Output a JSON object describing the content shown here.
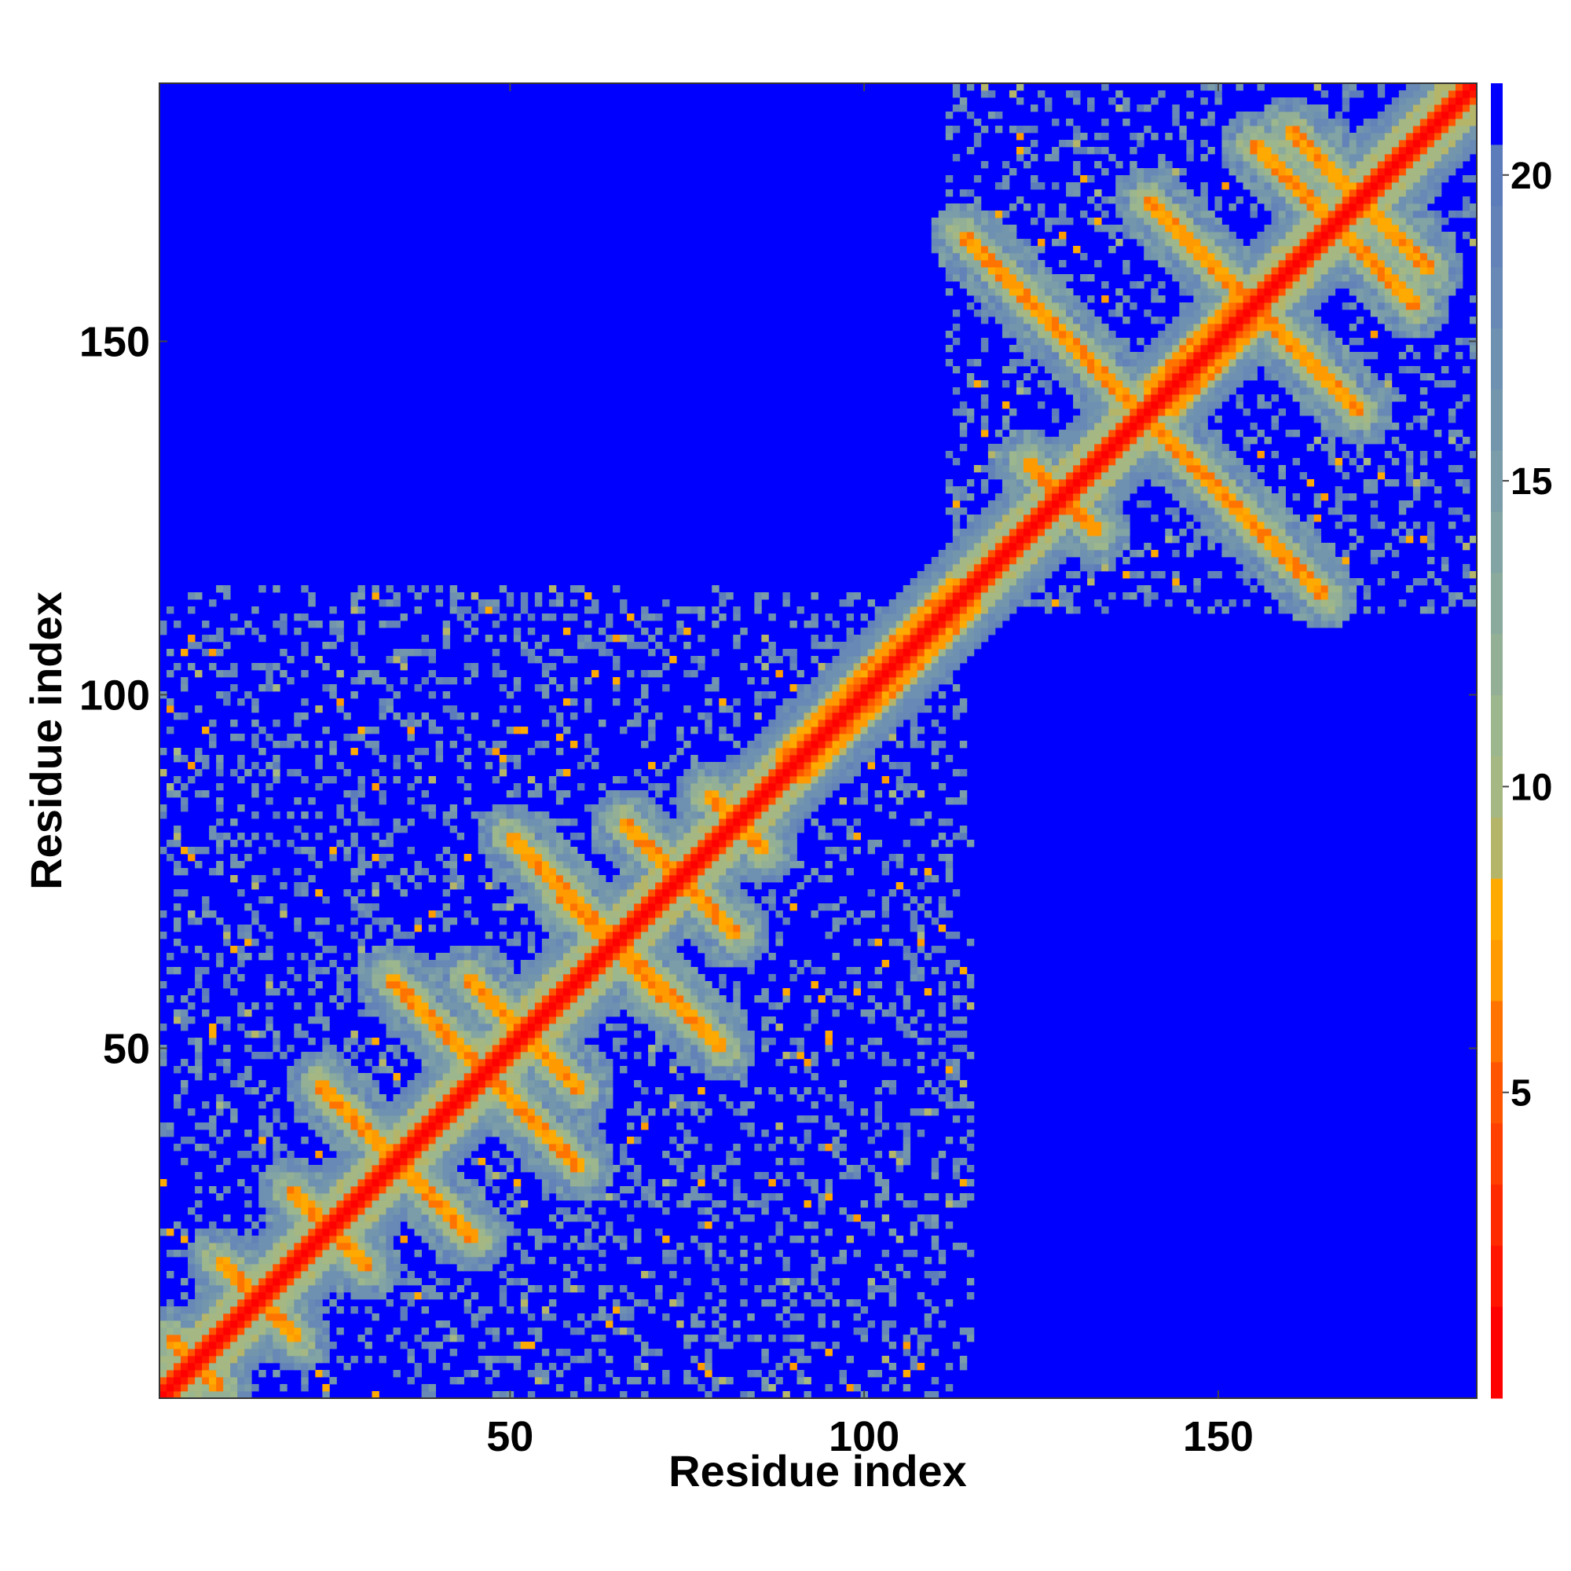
{
  "chart_data": {
    "type": "heatmap",
    "title": "",
    "xlabel": "Residue index",
    "ylabel": "Residue index",
    "n_residues": 186,
    "xlim": [
      1,
      186
    ],
    "ylim": [
      1,
      186
    ],
    "x_ticks": [
      50,
      100,
      150
    ],
    "y_ticks": [
      50,
      100,
      150
    ],
    "colorbar": {
      "ticks": [
        5,
        10,
        15,
        20
      ],
      "range": [
        0,
        21.5
      ],
      "levels": [
        {
          "max": 1.5,
          "color": "#ff0000"
        },
        {
          "max": 2.5,
          "color": "#ff1500"
        },
        {
          "max": 3.5,
          "color": "#ff2b00"
        },
        {
          "max": 4.5,
          "color": "#ff4000"
        },
        {
          "max": 5.5,
          "color": "#ff5500"
        },
        {
          "max": 6.5,
          "color": "#ff7400"
        },
        {
          "max": 7.5,
          "color": "#ff9a00"
        },
        {
          "max": 8.5,
          "color": "#ffaa00"
        },
        {
          "max": 9.5,
          "color": "#b5b56a"
        },
        {
          "max": 10.5,
          "color": "#a5b783"
        },
        {
          "max": 11.5,
          "color": "#9cb68d"
        },
        {
          "max": 12.5,
          "color": "#93b096"
        },
        {
          "max": 13.5,
          "color": "#8aaa9d"
        },
        {
          "max": 14.5,
          "color": "#82a4a4"
        },
        {
          "max": 15.5,
          "color": "#7a9da9"
        },
        {
          "max": 16.5,
          "color": "#7396ad"
        },
        {
          "max": 17.5,
          "color": "#6e90b1"
        },
        {
          "max": 18.5,
          "color": "#6888b5"
        },
        {
          "max": 19.5,
          "color": "#6282b8"
        },
        {
          "max": 20.5,
          "color": "#5c7cba"
        },
        {
          "max": 999,
          "color": "#0000ff"
        }
      ]
    },
    "structure": {
      "diagonal_width": 1.2,
      "sheets": [
        {
          "a": [
            2,
            9
          ],
          "b": [
            9,
            2
          ],
          "kind": "anti"
        },
        {
          "a": [
            9,
            20
          ],
          "b": [
            20,
            9
          ],
          "kind": "anti"
        },
        {
          "a": [
            19,
            30
          ],
          "b": [
            30,
            19
          ],
          "kind": "anti"
        },
        {
          "a": [
            23,
            45
          ],
          "b": [
            45,
            23
          ],
          "kind": "anti"
        },
        {
          "a": [
            33,
            60
          ],
          "b": [
            60,
            33
          ],
          "kind": "anti"
        },
        {
          "a": [
            50,
            80
          ],
          "b": [
            80,
            50
          ],
          "kind": "anti"
        },
        {
          "a": [
            44,
            60
          ],
          "b": [
            60,
            44
          ],
          "kind": "anti"
        },
        {
          "a": [
            57,
            72
          ],
          "b": [
            72,
            57
          ],
          "kind": "anti"
        },
        {
          "a": [
            66,
            82
          ],
          "b": [
            82,
            66
          ],
          "kind": "anti"
        },
        {
          "a": [
            78,
            86
          ],
          "b": [
            86,
            78
          ],
          "kind": "anti"
        },
        {
          "a": [
            123,
            133
          ],
          "b": [
            133,
            123
          ],
          "kind": "anti"
        },
        {
          "a": [
            114,
            165
          ],
          "b": [
            165,
            114
          ],
          "kind": "anti"
        },
        {
          "a": [
            155,
            178
          ],
          "b": [
            178,
            155
          ],
          "kind": "anti"
        },
        {
          "a": [
            160,
            180
          ],
          "b": [
            180,
            160
          ],
          "kind": "anti"
        },
        {
          "a": [
            140,
            170
          ],
          "b": [
            170,
            140
          ],
          "kind": "anti"
        }
      ],
      "helix_ranges": [
        [
          88,
          112
        ],
        [
          140,
          152
        ]
      ],
      "domains": [
        [
          1,
          115
        ],
        [
          112,
          186
        ]
      ]
    }
  }
}
